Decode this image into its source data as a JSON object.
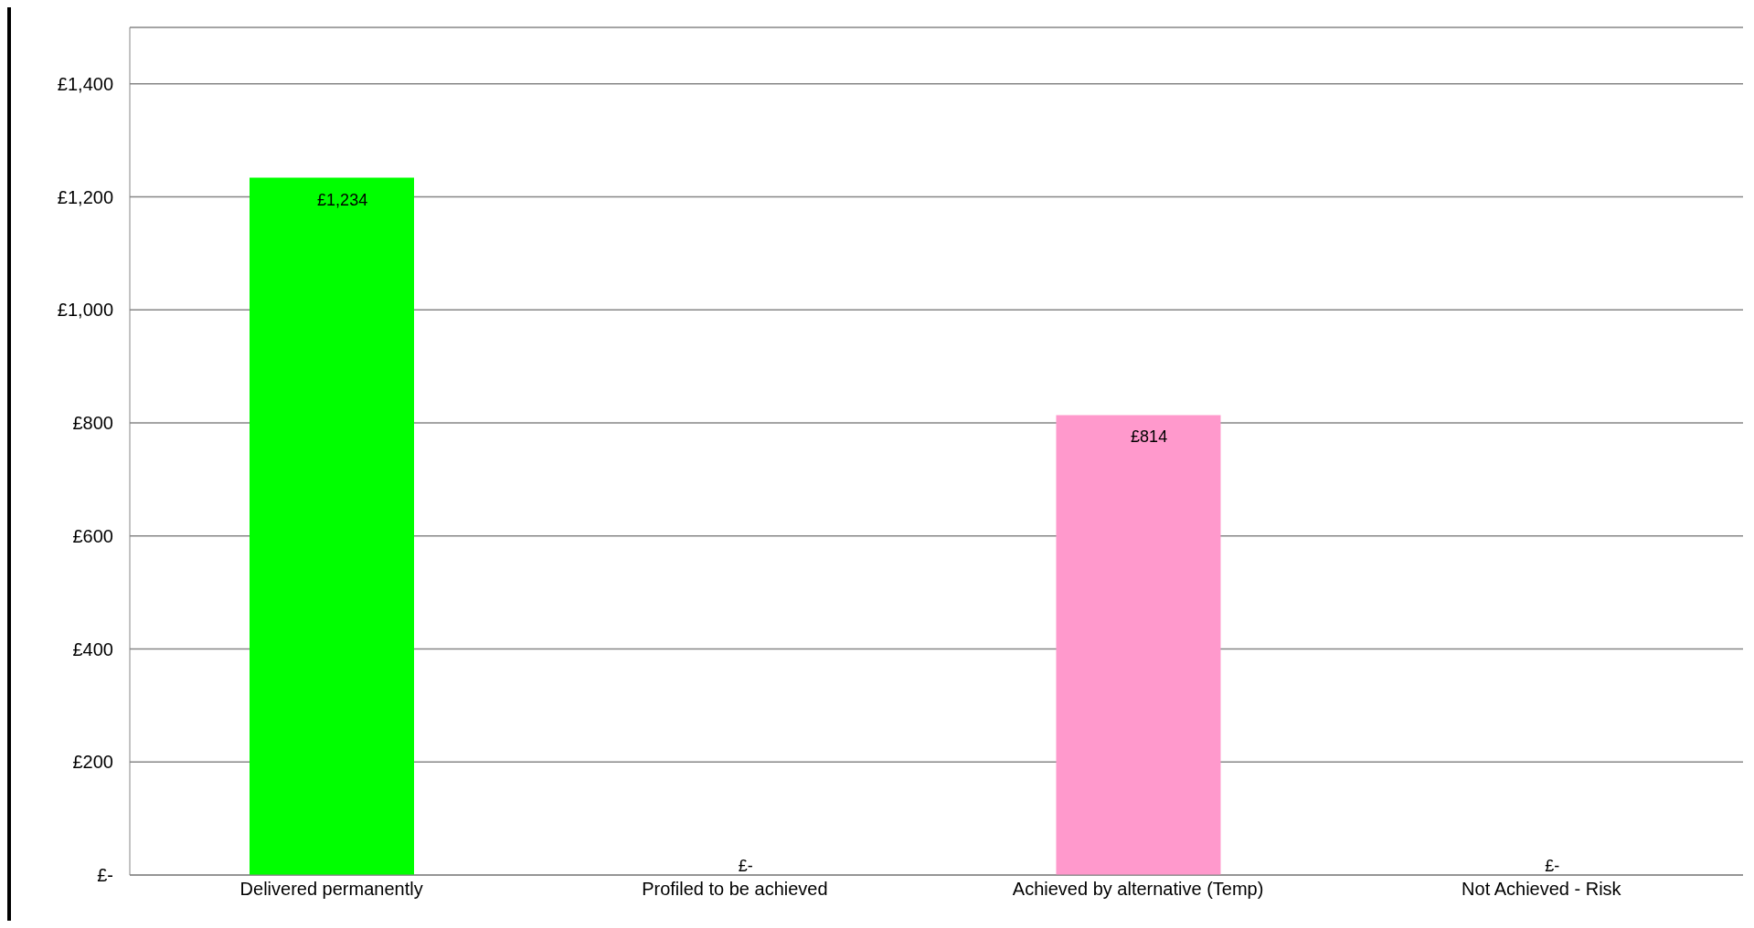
{
  "chart_data": {
    "type": "bar",
    "categories": [
      "Delivered permanently",
      "Profiled to be achieved",
      "Achieved by alternative (Temp)",
      "Not Achieved - Risk"
    ],
    "values": [
      1234,
      0,
      814,
      0
    ],
    "colors": [
      "#00ff00",
      "#ffc000",
      "#ff99cc",
      "#ff0000"
    ],
    "value_labels": [
      "£1,234",
      "£-",
      "£814",
      "£-"
    ],
    "ylim": [
      0,
      1500
    ],
    "yticks": [
      {
        "value": 0,
        "label": "£-"
      },
      {
        "value": 200,
        "label": "£200"
      },
      {
        "value": 400,
        "label": "£400"
      },
      {
        "value": 600,
        "label": "£600"
      },
      {
        "value": 800,
        "label": "£800"
      },
      {
        "value": 1000,
        "label": "£1,000"
      },
      {
        "value": 1200,
        "label": "£1,200"
      },
      {
        "value": 1400,
        "label": "£1,400"
      }
    ],
    "grid": "y",
    "legend": false
  }
}
